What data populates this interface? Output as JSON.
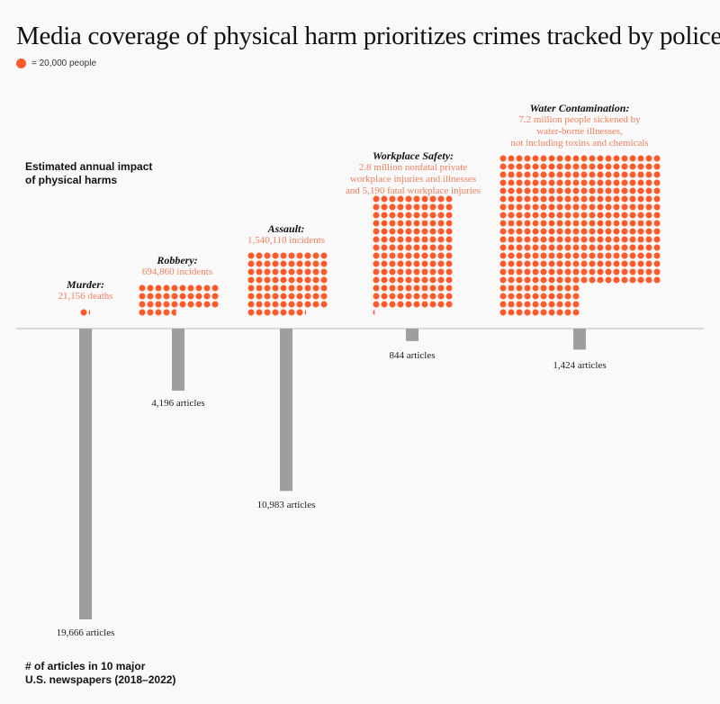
{
  "title": "Media coverage of physical harm prioritizes crimes tracked by police",
  "legend": {
    "label": "= 20,000 people",
    "color": "#ff5a2c"
  },
  "top_axis_label": [
    "Estimated annual impact",
    "of physical harms"
  ],
  "bottom_axis_label": [
    "# of articles in 10 major",
    "U.S. newspapers (2018–2022)"
  ],
  "chart_data": {
    "type": "isotype-bar",
    "unit_per_dot": 20000,
    "dot_color": "#ff5a2c",
    "bar_color": "#9e9e9e",
    "categories": [
      "Murder:",
      "Robbery:",
      "Assault:",
      "Workplace Safety:",
      "Water Contamination:"
    ],
    "people_values": [
      21156,
      694860,
      1540110,
      2805190,
      7200000
    ],
    "people_labels": [
      [
        "21,156 deaths"
      ],
      [
        "694,860 incidents"
      ],
      [
        "1,540,110 incidents"
      ],
      [
        "2.8 million nonfatal private",
        "workplace injuries and illnesses",
        "and 5,190 fatal workplace injuries"
      ],
      [
        "7.2 million people sickened by",
        "water-borne illnesses,",
        "not including toxins and chemicals"
      ]
    ],
    "articles": [
      19666,
      4196,
      10983,
      844,
      1424
    ],
    "article_labels": [
      "19,666 articles",
      "4,196 articles",
      "10,983 articles",
      "844 articles",
      "1,424 articles"
    ]
  }
}
